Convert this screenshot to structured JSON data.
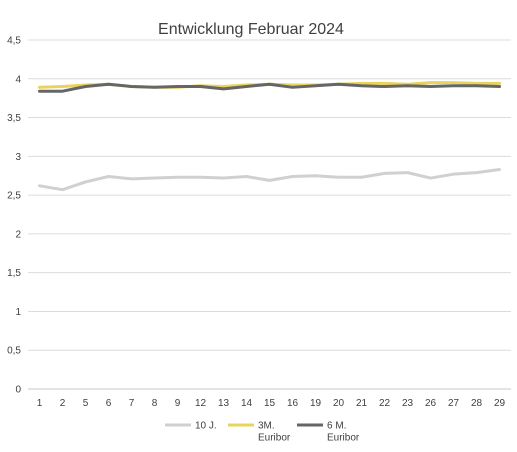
{
  "chart_data": {
    "type": "line",
    "title": "Entwicklung Februar 2024",
    "xlabel": "",
    "ylabel": "",
    "categories": [
      "1",
      "2",
      "5",
      "6",
      "7",
      "8",
      "9",
      "12",
      "13",
      "14",
      "15",
      "16",
      "19",
      "20",
      "21",
      "22",
      "23",
      "26",
      "27",
      "28",
      "29"
    ],
    "y_ticks": [
      "0",
      "0,5",
      "1",
      "1,5",
      "2",
      "2,5",
      "3",
      "3,5",
      "4",
      "4,5"
    ],
    "ylim": [
      0,
      4.5
    ],
    "grid": true,
    "legend_position": "bottom",
    "series": [
      {
        "name": "10 J.",
        "color": "#d0d0d0",
        "values": [
          2.62,
          2.57,
          2.67,
          2.74,
          2.71,
          2.72,
          2.73,
          2.73,
          2.72,
          2.74,
          2.69,
          2.74,
          2.75,
          2.73,
          2.73,
          2.78,
          2.79,
          2.72,
          2.77,
          2.79,
          2.83
        ]
      },
      {
        "name": "3M.\nEuribor",
        "color": "#e8d45c",
        "values": [
          3.89,
          3.9,
          3.92,
          3.93,
          3.9,
          3.89,
          3.89,
          3.91,
          3.9,
          3.92,
          3.93,
          3.92,
          3.92,
          3.93,
          3.94,
          3.94,
          3.93,
          3.95,
          3.95,
          3.94,
          3.94
        ]
      },
      {
        "name": "6 M.\nEuribor",
        "color": "#666666",
        "values": [
          3.84,
          3.84,
          3.9,
          3.93,
          3.9,
          3.89,
          3.9,
          3.9,
          3.87,
          3.9,
          3.93,
          3.89,
          3.91,
          3.93,
          3.91,
          3.9,
          3.91,
          3.9,
          3.91,
          3.91,
          3.9
        ]
      }
    ]
  }
}
